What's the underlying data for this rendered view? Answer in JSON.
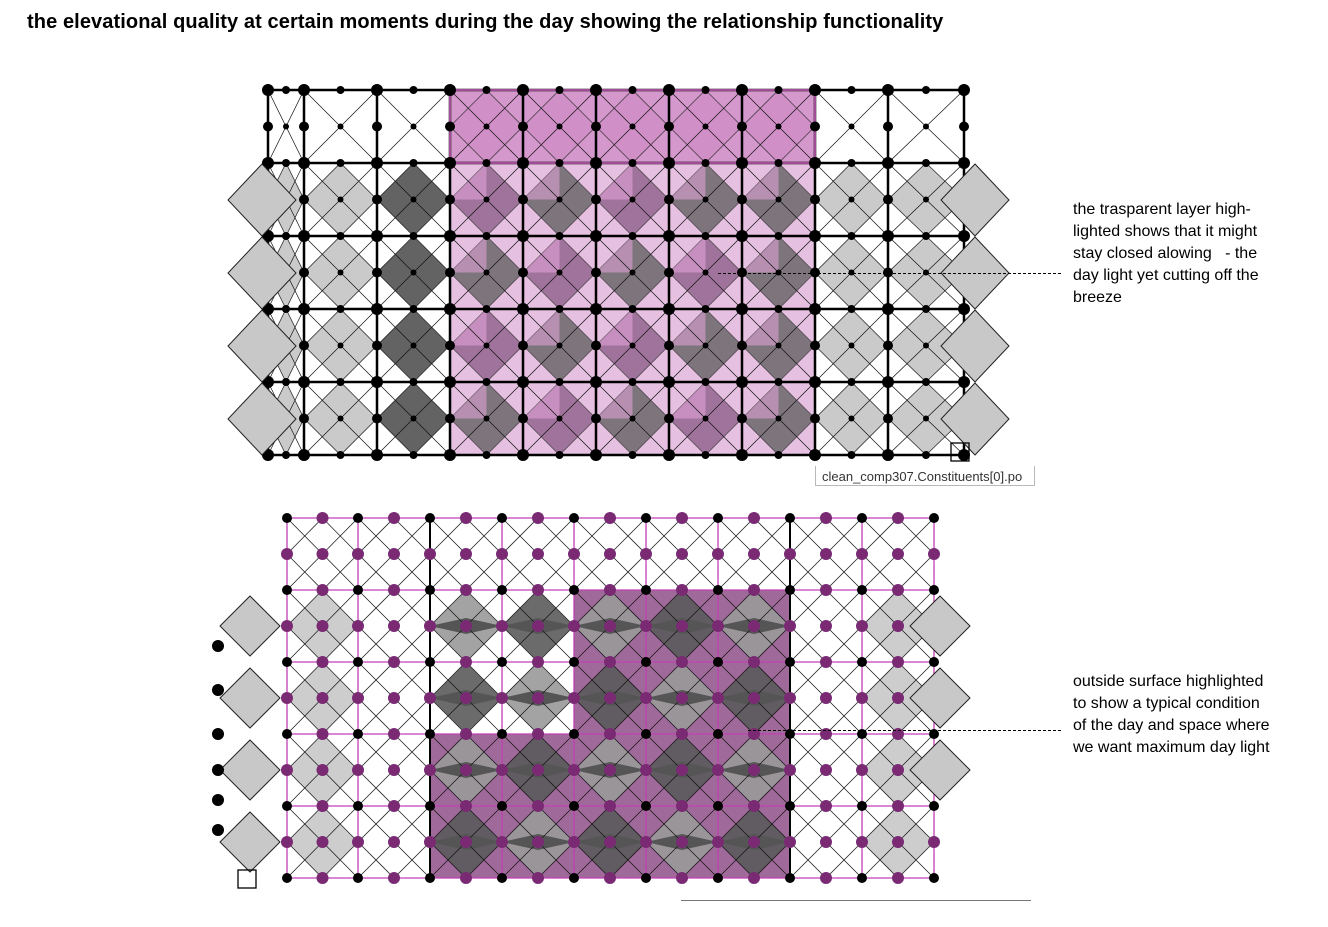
{
  "title": "the elevational quality at certain moments during the day showing the relationship functionality",
  "annotations": {
    "top": "the trasparent layer high-\nlighted shows that it might\nstay closed alowing   - the\nday light yet cutting off the\nbreeze",
    "bottom": "outside surface highlighted\nto show a typical condition\nof the day and space where\nwe want maximum day light"
  },
  "tooltip": "clean_comp307.Constituents[0].po",
  "colors": {
    "highlight_top": "#cf8dc6",
    "highlight_top_line": "#a24c98",
    "highlight_bottom": "#8e4f87",
    "grid_bottom": "#c040b4",
    "node_purple": "#7a2a72",
    "dark_panel": "#5b5b5b",
    "mid_panel": "#9a9a9a",
    "light_panel": "#c8c8c8"
  },
  "panels": [
    {
      "name": "top-elevation",
      "mode": "transparent-layer-closed"
    },
    {
      "name": "bottom-elevation",
      "mode": "outside-surface-open"
    }
  ]
}
